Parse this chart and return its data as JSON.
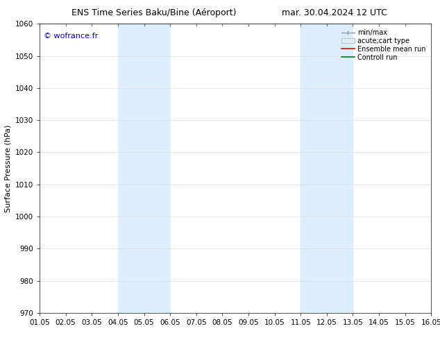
{
  "title_left": "ENS Time Series Baku/Bine (Aéroport)",
  "title_right": "mar. 30.04.2024 12 UTC",
  "ylabel": "Surface Pressure (hPa)",
  "watermark": "© wofrance.fr",
  "watermark_color": "#0000cc",
  "ylim": [
    970,
    1060
  ],
  "yticks": [
    970,
    980,
    990,
    1000,
    1010,
    1020,
    1030,
    1040,
    1050,
    1060
  ],
  "xtick_labels": [
    "01.05",
    "02.05",
    "03.05",
    "04.05",
    "05.05",
    "06.05",
    "07.05",
    "08.05",
    "09.05",
    "10.05",
    "11.05",
    "12.05",
    "13.05",
    "14.05",
    "15.05",
    "16.05"
  ],
  "x_values": [
    0,
    1,
    2,
    3,
    4,
    5,
    6,
    7,
    8,
    9,
    10,
    11,
    12,
    13,
    14,
    15
  ],
  "xlim": [
    0,
    15
  ],
  "shade_regions": [
    {
      "x_start": 3,
      "x_end": 5,
      "color": "#ddeeff"
    },
    {
      "x_start": 10,
      "x_end": 12,
      "color": "#ddeeff"
    }
  ],
  "legend_items": [
    {
      "label": "min/max",
      "color": "#aaaaaa",
      "style": "minmax"
    },
    {
      "label": "acute;cart type",
      "color": "#cccccc",
      "style": "box"
    },
    {
      "label": "Ensemble mean run",
      "color": "#ff0000",
      "style": "line"
    },
    {
      "label": "Controll run",
      "color": "#008000",
      "style": "line"
    }
  ],
  "bg_color": "#ffffff",
  "title_fontsize": 9,
  "label_fontsize": 8,
  "tick_fontsize": 7.5,
  "watermark_fontsize": 8
}
